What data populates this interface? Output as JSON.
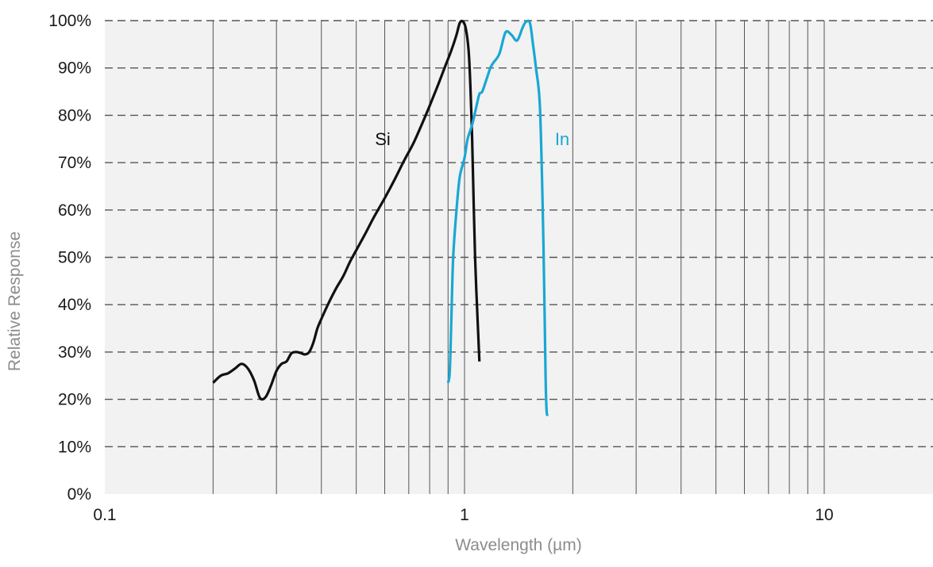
{
  "chart_data": {
    "type": "line",
    "xlabel": "Wavelength (µm)",
    "ylabel": "Relative Response",
    "x_scale": "log",
    "xlim": [
      0.1,
      18
    ],
    "ylim": [
      0,
      100
    ],
    "x_tick_labels": [
      {
        "value": 0.1,
        "label": "0.1"
      },
      {
        "value": 1,
        "label": "1"
      },
      {
        "value": 10,
        "label": "10"
      }
    ],
    "x_gridlines": [
      0.2,
      0.3,
      0.4,
      0.5,
      0.6,
      0.7,
      0.8,
      0.9,
      1,
      2,
      3,
      4,
      5,
      6,
      7,
      8,
      9,
      10
    ],
    "y_ticks": [
      0,
      10,
      20,
      30,
      40,
      50,
      60,
      70,
      80,
      90,
      100
    ],
    "y_tick_labels": [
      "0%",
      "10%",
      "20%",
      "30%",
      "40%",
      "50%",
      "60%",
      "70%",
      "80%",
      "90%",
      "100%"
    ],
    "grid": {
      "x": "solid",
      "y": "dashed"
    },
    "colors": {
      "plot_background": "#f2f2f2",
      "si": "#111111",
      "in": "#19a7d4",
      "grid": "#555555"
    },
    "series": [
      {
        "name": "Si",
        "label": "Si",
        "color": "#111111",
        "x": [
          0.2,
          0.21,
          0.22,
          0.23,
          0.24,
          0.25,
          0.26,
          0.27,
          0.28,
          0.29,
          0.3,
          0.31,
          0.32,
          0.33,
          0.34,
          0.35,
          0.36,
          0.37,
          0.38,
          0.39,
          0.4,
          0.42,
          0.44,
          0.46,
          0.48,
          0.5,
          0.53,
          0.56,
          0.6,
          0.64,
          0.68,
          0.72,
          0.76,
          0.8,
          0.84,
          0.88,
          0.92,
          0.95,
          0.97,
          0.99,
          1.01,
          1.03,
          1.05,
          1.07,
          1.1
        ],
        "y": [
          23.5,
          25,
          25.5,
          26.5,
          27.5,
          26.5,
          24,
          20.3,
          20.5,
          23,
          26,
          27.5,
          28,
          29.7,
          30,
          29.8,
          29.5,
          30,
          32,
          35,
          37,
          40.5,
          43.5,
          46,
          49,
          51.5,
          55,
          58.5,
          62.5,
          66.5,
          70.5,
          74,
          78,
          82,
          86,
          90,
          93.8,
          97,
          99.5,
          99.8,
          98,
          92,
          75,
          50,
          28
        ]
      },
      {
        "name": "In",
        "label": "In",
        "color": "#19a7d4",
        "x": [
          0.9,
          0.91,
          0.92,
          0.93,
          0.95,
          0.97,
          1.0,
          1.02,
          1.05,
          1.08,
          1.1,
          1.12,
          1.15,
          1.18,
          1.2,
          1.25,
          1.3,
          1.35,
          1.4,
          1.45,
          1.48,
          1.52,
          1.55,
          1.58,
          1.62,
          1.65,
          1.67,
          1.68,
          1.69,
          1.7
        ],
        "y": [
          23.5,
          26,
          38,
          50,
          60,
          67,
          71,
          75,
          78,
          82,
          84.5,
          85,
          87.5,
          90,
          91,
          93,
          97.5,
          97,
          95.8,
          98.5,
          99.7,
          99.5,
          95,
          90,
          82,
          60,
          38,
          25,
          18,
          16.5
        ]
      }
    ]
  }
}
